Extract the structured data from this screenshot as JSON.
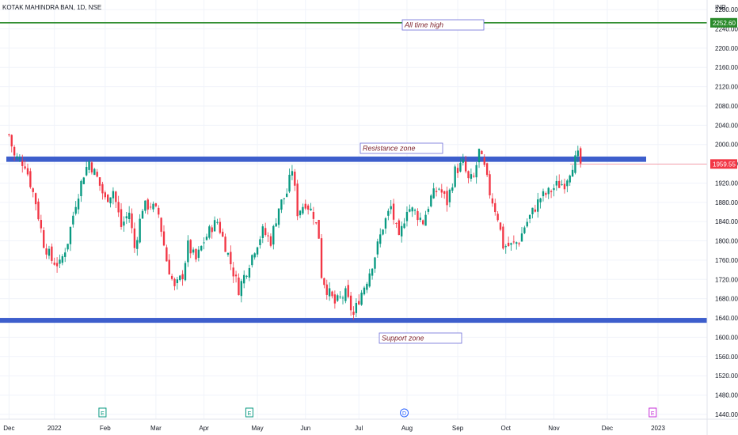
{
  "header": {
    "symbol": "KOTAK MAHINDRA BAN, 1D, NSE",
    "currency": "INR"
  },
  "chart_data": {
    "type": "candlestick",
    "symbol": "KOTAK MAHINDRA BAN",
    "interval": "1D",
    "exchange": "NSE",
    "ylim": [
      1430,
      2290
    ],
    "y_ticks": [
      1440,
      1480,
      1520,
      1560,
      1600,
      1640,
      1680,
      1720,
      1760,
      1800,
      1840,
      1880,
      1920,
      1960,
      2000,
      2040,
      2080,
      2120,
      2160,
      2200,
      2240,
      2280
    ],
    "y_tick_labels": [
      "1440.00",
      "1480.00",
      "1520.00",
      "1560.00",
      "1600.00",
      "1640.00",
      "1680.00",
      "1720.00",
      "1760.00",
      "1800.00",
      "1840.00",
      "1880.00",
      "1920.00",
      "1960.00",
      "2000.00",
      "2040.00",
      "2080.00",
      "2120.00",
      "2160.00",
      "2200.00",
      "2240.00",
      "2280.00"
    ],
    "x_labels": [
      "Dec",
      "2022",
      "Feb",
      "Mar",
      "Apr",
      "May",
      "Jun",
      "Jul",
      "Aug",
      "Sep",
      "Oct",
      "Nov",
      "Dec",
      "2023"
    ],
    "x_label_index": [
      0,
      17,
      36,
      55,
      73,
      93,
      111,
      131,
      149,
      168,
      186,
      204,
      224,
      243
    ],
    "xlim": [
      -1,
      251
    ],
    "close_path": [
      [
        0,
        2020
      ],
      [
        2,
        1975
      ],
      [
        6,
        1960
      ],
      [
        10,
        1880
      ],
      [
        13,
        1795
      ],
      [
        16,
        1760
      ],
      [
        19,
        1750
      ],
      [
        22,
        1800
      ],
      [
        25,
        1880
      ],
      [
        28,
        1940
      ],
      [
        30,
        1965
      ],
      [
        33,
        1930
      ],
      [
        36,
        1885
      ],
      [
        39,
        1905
      ],
      [
        42,
        1830
      ],
      [
        45,
        1860
      ],
      [
        47,
        1785
      ],
      [
        50,
        1870
      ],
      [
        53,
        1875
      ],
      [
        56,
        1855
      ],
      [
        59,
        1760
      ],
      [
        62,
        1700
      ],
      [
        65,
        1730
      ],
      [
        67,
        1790
      ],
      [
        70,
        1760
      ],
      [
        73,
        1800
      ],
      [
        76,
        1830
      ],
      [
        78,
        1840
      ],
      [
        81,
        1790
      ],
      [
        84,
        1735
      ],
      [
        86,
        1700
      ],
      [
        89,
        1740
      ],
      [
        92,
        1785
      ],
      [
        95,
        1820
      ],
      [
        98,
        1800
      ],
      [
        101,
        1870
      ],
      [
        104,
        1900
      ],
      [
        106,
        1950
      ],
      [
        108,
        1860
      ],
      [
        111,
        1880
      ],
      [
        114,
        1855
      ],
      [
        116,
        1810
      ],
      [
        117,
        1730
      ],
      [
        119,
        1700
      ],
      [
        122,
        1670
      ],
      [
        126,
        1690
      ],
      [
        129,
        1645
      ],
      [
        131,
        1680
      ],
      [
        134,
        1720
      ],
      [
        137,
        1770
      ],
      [
        140,
        1830
      ],
      [
        143,
        1870
      ],
      [
        146,
        1800
      ],
      [
        149,
        1870
      ],
      [
        152,
        1860
      ],
      [
        155,
        1840
      ],
      [
        158,
        1890
      ],
      [
        161,
        1910
      ],
      [
        164,
        1880
      ],
      [
        167,
        1945
      ],
      [
        170,
        1960
      ],
      [
        172,
        1925
      ],
      [
        174,
        1930
      ],
      [
        176,
        1985
      ],
      [
        178,
        1950
      ],
      [
        180,
        1900
      ],
      [
        183,
        1850
      ],
      [
        185,
        1790
      ],
      [
        188,
        1790
      ],
      [
        191,
        1800
      ],
      [
        193,
        1830
      ],
      [
        196,
        1860
      ],
      [
        199,
        1890
      ],
      [
        202,
        1900
      ],
      [
        205,
        1915
      ],
      [
        208,
        1920
      ],
      [
        211,
        1960
      ],
      [
        213,
        1975
      ],
      [
        214,
        1959.55
      ]
    ],
    "series": [
      {
        "name": "Resistance zone",
        "type": "zone",
        "y_range": [
          1964,
          1975
        ]
      },
      {
        "name": "Support zone",
        "type": "zone",
        "y_range": [
          1630,
          1640
        ]
      },
      {
        "name": "All time high",
        "type": "hline",
        "y": 2252.6
      }
    ],
    "last_price": 1959.55,
    "up_color": "#089981",
    "down_color": "#f23645",
    "grid": true,
    "legend": "none"
  },
  "annotations": {
    "all_time_high": {
      "label": "All time high",
      "value_label": "2252.60",
      "color": "#2a8a2a"
    },
    "resistance": {
      "label": "Resistance zone",
      "color": "#3d5ecc"
    },
    "support": {
      "label": "Support zone",
      "color": "#3d5ecc"
    },
    "last_price_label": "1959.55",
    "last_price_color": "#f23645"
  },
  "events": [
    {
      "symbol": "E",
      "index": 35,
      "color": "#089981"
    },
    {
      "symbol": "E",
      "index": 90,
      "color": "#089981"
    },
    {
      "symbol": "D",
      "index": 148,
      "color": "#2962ff"
    },
    {
      "symbol": "E",
      "index": 241,
      "color": "#c42fd8"
    }
  ]
}
